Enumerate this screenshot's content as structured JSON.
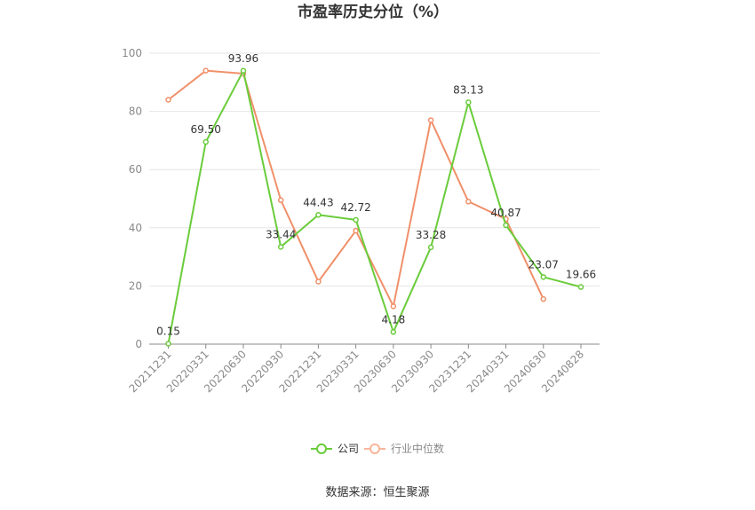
{
  "chart_data": {
    "type": "line",
    "title": "市盈率历史分位（%）",
    "categories": [
      "20211231",
      "20220331",
      "20220630",
      "20220930",
      "20221231",
      "20230331",
      "20230630",
      "20230930",
      "20231231",
      "20240331",
      "20240630",
      "20240828"
    ],
    "ylim": [
      0,
      100
    ],
    "yticks": [
      0,
      20,
      40,
      60,
      80,
      100
    ],
    "grid": true,
    "legend_position": "bottom",
    "series": [
      {
        "name": "公司",
        "color": "#6acc3b",
        "values": [
          0.15,
          69.5,
          93.96,
          33.44,
          44.43,
          42.72,
          4.18,
          33.28,
          83.13,
          40.87,
          23.07,
          19.66
        ],
        "labels": [
          "0.15",
          "69.50",
          "93.96",
          "33.44",
          "44.43",
          "42.72",
          "4.18",
          "33.28",
          "83.13",
          "40.87",
          "23.07",
          "19.66"
        ]
      },
      {
        "name": "行业中位数",
        "color": "#f0906a",
        "values": [
          84,
          94,
          93,
          49.5,
          21.5,
          39,
          13,
          77,
          49,
          43,
          15.5,
          null
        ]
      }
    ]
  },
  "source": "数据来源：恒生聚源"
}
